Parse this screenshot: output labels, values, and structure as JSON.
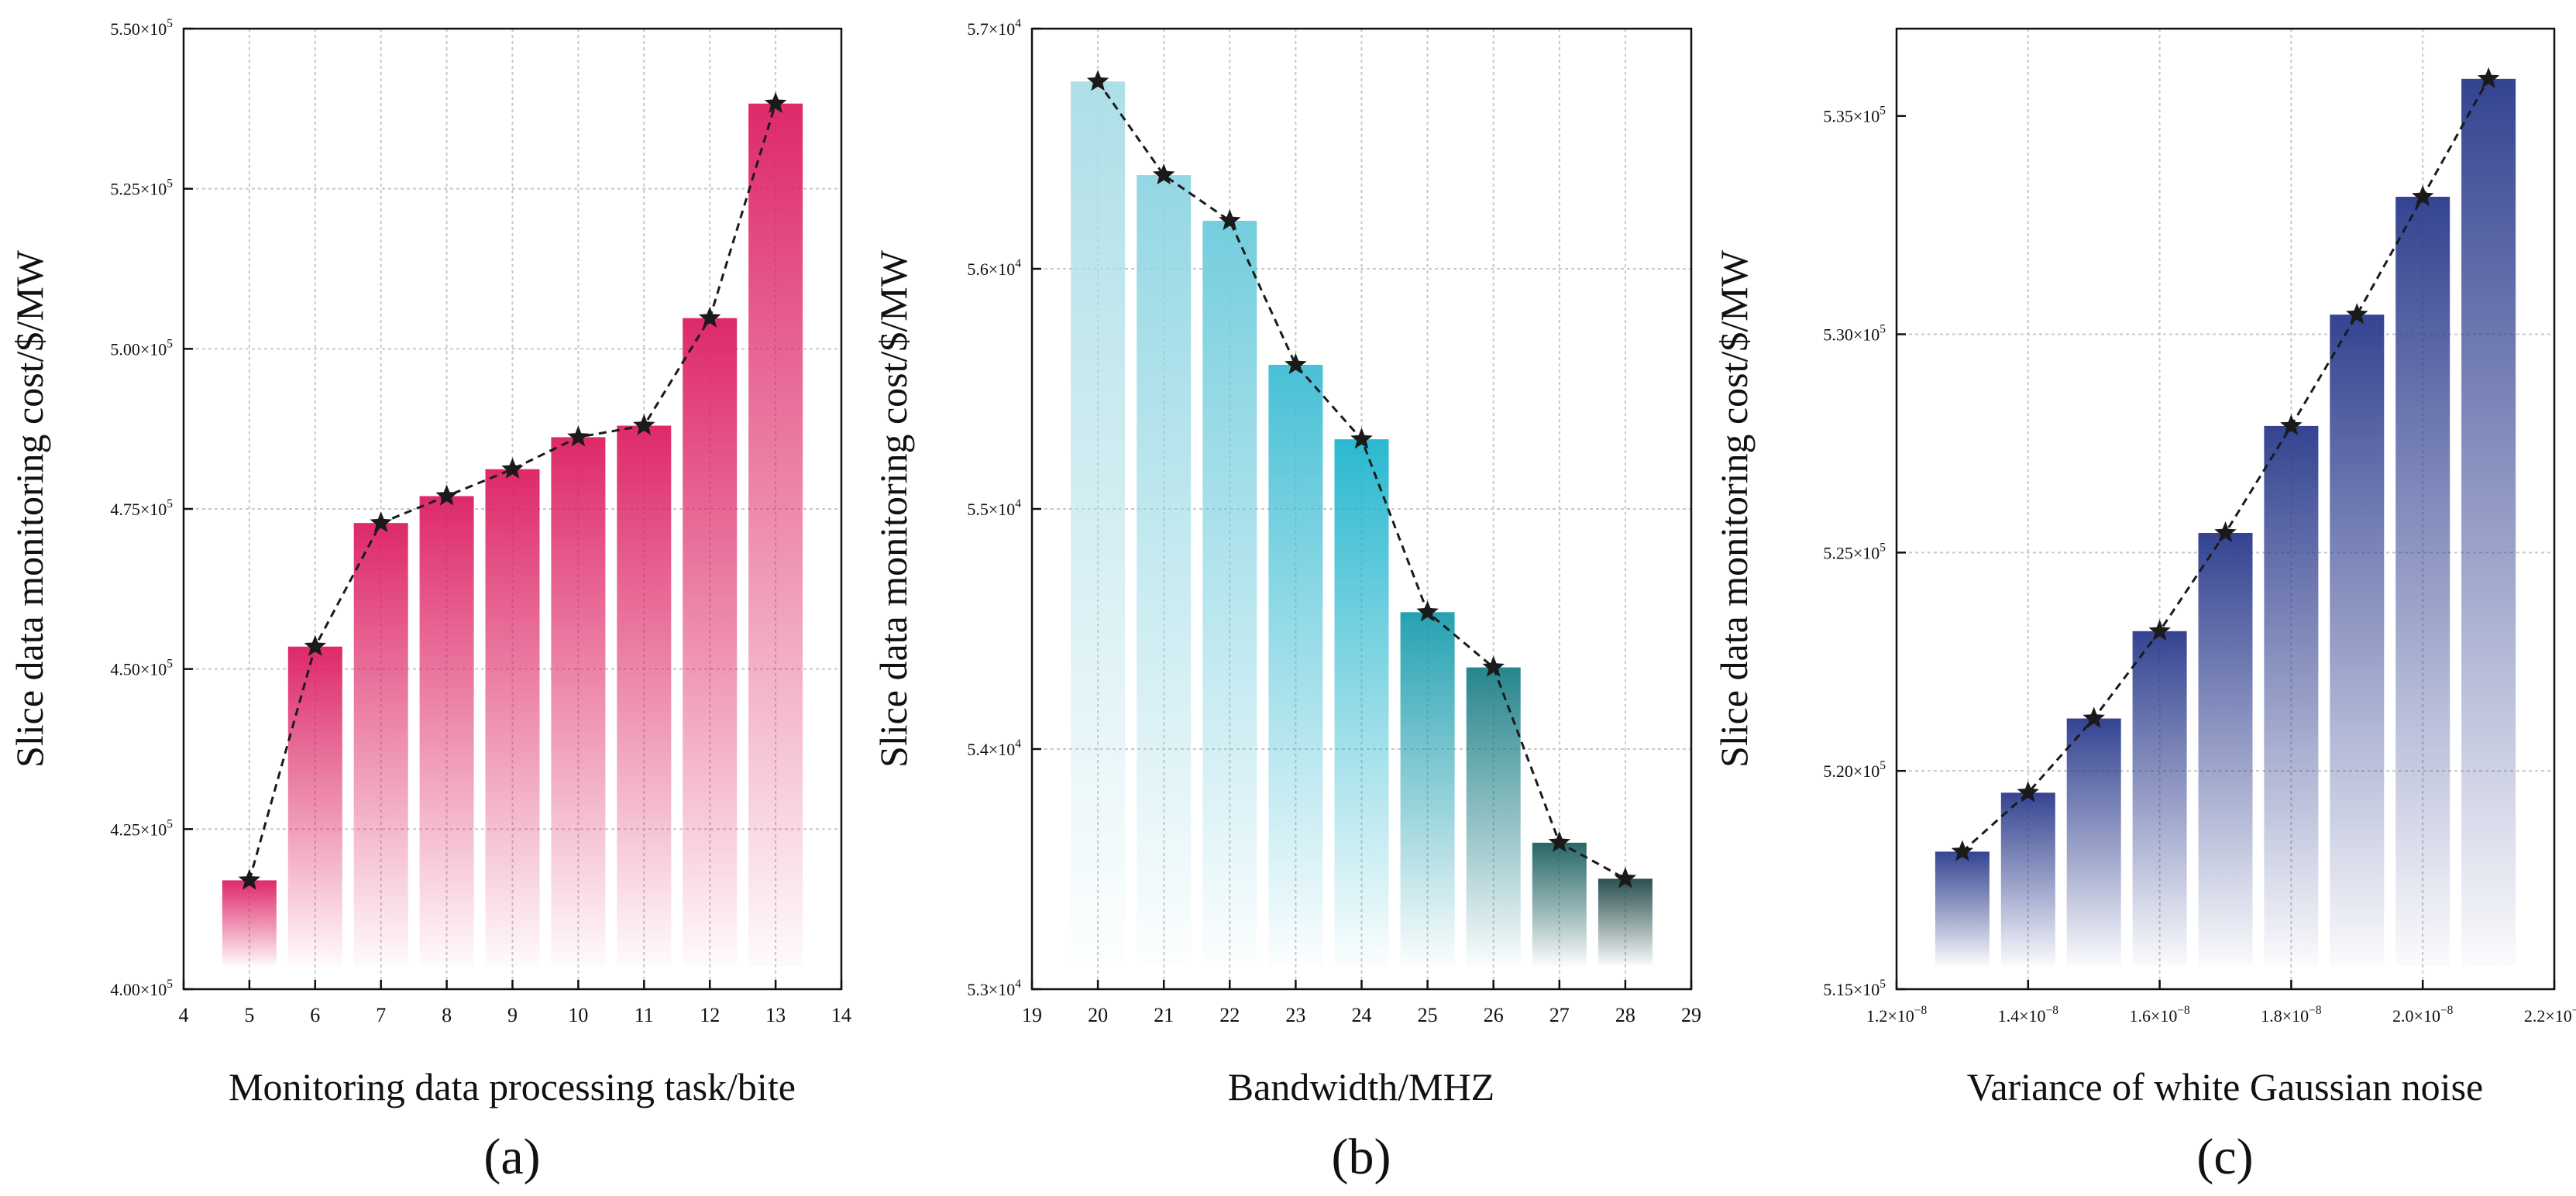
{
  "chart_data": [
    {
      "type": "bar",
      "panel_label": "(a)",
      "title": "",
      "xlabel": "Monitoring data processing task/bite",
      "ylabel": "Slice data monitoring cost/$/MW",
      "x": [
        5,
        6,
        7,
        8,
        9,
        10,
        11,
        12,
        13
      ],
      "values": [
        417000,
        453500,
        472800,
        477000,
        481200,
        486200,
        488000,
        504800,
        538300
      ],
      "xlim": [
        4,
        14
      ],
      "ylim": [
        400000,
        550000
      ],
      "xticks": [
        4,
        5,
        6,
        7,
        8,
        9,
        10,
        11,
        12,
        13,
        14
      ],
      "xtick_labels": [
        "4",
        "5",
        "6",
        "7",
        "8",
        "9",
        "10",
        "11",
        "12",
        "13",
        "14"
      ],
      "yticks": [
        400000,
        425000,
        450000,
        475000,
        500000,
        525000,
        550000
      ],
      "ytick_mantissa": [
        "4.00",
        "4.25",
        "4.50",
        "4.75",
        "5.00",
        "5.25",
        "5.50"
      ],
      "ytick_base": "×10",
      "ytick_exp": "5",
      "bar_color": "#dc1e62",
      "grid": true,
      "line": {
        "style": "dashed",
        "marker": "star",
        "color": "#1a1a1a"
      }
    },
    {
      "type": "bar",
      "panel_label": "(b)",
      "title": "",
      "xlabel": "Bandwidth/MHZ",
      "ylabel": "Slice data monitoring cost/$/MW",
      "x": [
        20,
        21,
        22,
        23,
        24,
        25,
        26,
        27,
        28
      ],
      "values": [
        56780,
        56390,
        56200,
        55600,
        55290,
        54570,
        54340,
        53610,
        53460
      ],
      "xlim": [
        19,
        29
      ],
      "ylim": [
        53000,
        57000
      ],
      "xticks": [
        19,
        20,
        21,
        22,
        23,
        24,
        25,
        26,
        27,
        28,
        29
      ],
      "xtick_labels": [
        "19",
        "20",
        "21",
        "22",
        "23",
        "24",
        "25",
        "26",
        "27",
        "28",
        "29"
      ],
      "yticks": [
        53000,
        54000,
        55000,
        56000,
        57000
      ],
      "ytick_mantissa": [
        "5.3",
        "5.4",
        "5.5",
        "5.6",
        "5.7"
      ],
      "ytick_base": "×10",
      "ytick_exp": "4",
      "bar_colors": [
        "#a9dde6",
        "#8ed5e2",
        "#6dcbdc",
        "#3fbdd4",
        "#20b5cd",
        "#1a9dae",
        "#1b7f86",
        "#1c5f5e",
        "#1f4746"
      ],
      "grid": true,
      "line": {
        "style": "dashed",
        "marker": "star",
        "color": "#1a1a1a"
      }
    },
    {
      "type": "bar",
      "panel_label": "(c)",
      "title": "",
      "xlabel": "Variance of white Gaussian noise",
      "ylabel": "Slice data monitoring cost/$/MW",
      "x": [
        1.3e-08,
        1.4e-08,
        1.5e-08,
        1.6e-08,
        1.7e-08,
        1.8e-08,
        1.9e-08,
        2e-08,
        2.1e-08
      ],
      "values": [
        518150,
        519500,
        521200,
        523200,
        525450,
        527900,
        530450,
        533150,
        535850
      ],
      "xlim": [
        1.2e-08,
        2.2e-08
      ],
      "ylim": [
        515000,
        537000
      ],
      "xticks": [
        1.2e-08,
        1.4e-08,
        1.6e-08,
        1.8e-08,
        2e-08,
        2.2e-08
      ],
      "xtick_mantissa": [
        "1.2",
        "1.4",
        "1.6",
        "1.8",
        "2.0",
        "2.2"
      ],
      "xtick_base": "×10",
      "xtick_exp": "−8",
      "yticks": [
        515000,
        520000,
        525000,
        530000,
        535000
      ],
      "ytick_mantissa": [
        "5.15",
        "5.20",
        "5.25",
        "5.30",
        "5.35"
      ],
      "ytick_base": "×10",
      "ytick_exp": "5",
      "bar_color": "#2a3a8c",
      "grid": true,
      "line": {
        "style": "dashed",
        "marker": "star",
        "color": "#1a1a1a"
      }
    }
  ]
}
